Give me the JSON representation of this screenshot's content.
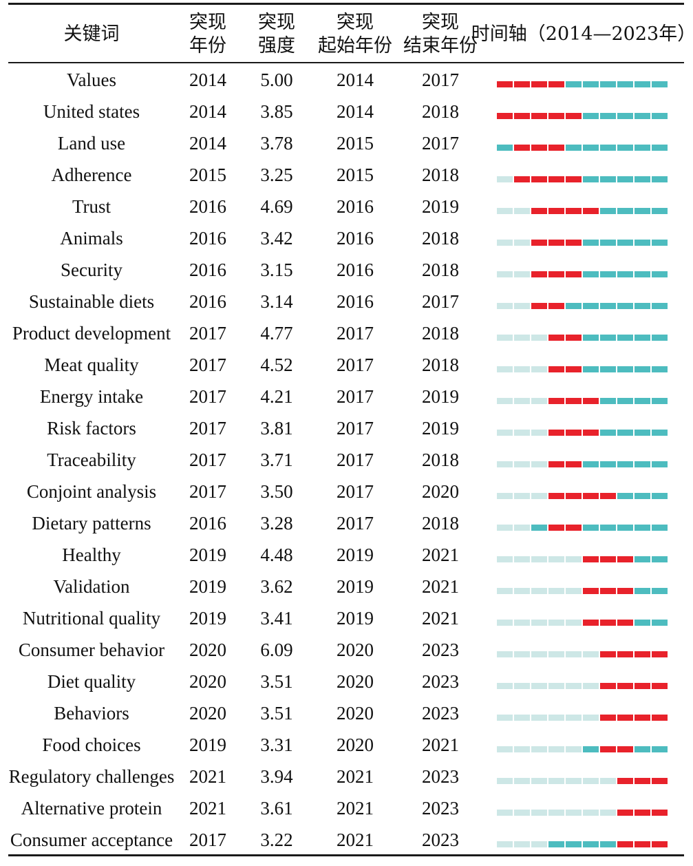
{
  "headers": {
    "keyword": "关键词",
    "year_l1": "突现",
    "year_l2": "年份",
    "strength_l1": "突现",
    "strength_l2": "强度",
    "start_l1": "突现",
    "start_l2": "起始年份",
    "end_l1": "突现",
    "end_l2": "结束年份",
    "timeline": "时间轴（2014—2023年）"
  },
  "colors": {
    "burst": "#e8222b",
    "active": "#4dbcbf",
    "inactive": "#cde7e6",
    "rule": "#1a1a1a"
  },
  "chart_data": {
    "type": "table",
    "timeline_range": [
      2014,
      2023
    ],
    "columns": [
      "关键词",
      "突现年份",
      "突现强度",
      "突现起始年份",
      "突现结束年份",
      "时间轴（2014—2023年）"
    ],
    "rows": [
      {
        "keyword": "Values",
        "year": "2014",
        "strength": "5.00",
        "start": "2014",
        "end": "2017"
      },
      {
        "keyword": "United states",
        "year": "2014",
        "strength": "3.85",
        "start": "2014",
        "end": "2018"
      },
      {
        "keyword": "Land use",
        "year": "2014",
        "strength": "3.78",
        "start": "2015",
        "end": "2017"
      },
      {
        "keyword": "Adherence",
        "year": "2015",
        "strength": "3.25",
        "start": "2015",
        "end": "2018"
      },
      {
        "keyword": "Trust",
        "year": "2016",
        "strength": "4.69",
        "start": "2016",
        "end": "2019"
      },
      {
        "keyword": "Animals",
        "year": "2016",
        "strength": "3.42",
        "start": "2016",
        "end": "2018"
      },
      {
        "keyword": "Security",
        "year": "2016",
        "strength": "3.15",
        "start": "2016",
        "end": "2018"
      },
      {
        "keyword": "Sustainable diets",
        "year": "2016",
        "strength": "3.14",
        "start": "2016",
        "end": "2017"
      },
      {
        "keyword": "Product development",
        "year": "2017",
        "strength": "4.77",
        "start": "2017",
        "end": "2018"
      },
      {
        "keyword": "Meat quality",
        "year": "2017",
        "strength": "4.52",
        "start": "2017",
        "end": "2018"
      },
      {
        "keyword": "Energy intake",
        "year": "2017",
        "strength": "4.21",
        "start": "2017",
        "end": "2019"
      },
      {
        "keyword": "Risk factors",
        "year": "2017",
        "strength": "3.81",
        "start": "2017",
        "end": "2019"
      },
      {
        "keyword": "Traceability",
        "year": "2017",
        "strength": "3.71",
        "start": "2017",
        "end": "2018"
      },
      {
        "keyword": "Conjoint analysis",
        "year": "2017",
        "strength": "3.50",
        "start": "2017",
        "end": "2020"
      },
      {
        "keyword": "Dietary patterns",
        "year": "2016",
        "strength": "3.28",
        "start": "2017",
        "end": "2018"
      },
      {
        "keyword": "Healthy",
        "year": "2019",
        "strength": "4.48",
        "start": "2019",
        "end": "2021"
      },
      {
        "keyword": "Validation",
        "year": "2019",
        "strength": "3.62",
        "start": "2019",
        "end": "2021"
      },
      {
        "keyword": "Nutritional quality",
        "year": "2019",
        "strength": "3.41",
        "start": "2019",
        "end": "2021"
      },
      {
        "keyword": "Consumer behavior",
        "year": "2020",
        "strength": "6.09",
        "start": "2020",
        "end": "2023"
      },
      {
        "keyword": "Diet quality",
        "year": "2020",
        "strength": "3.51",
        "start": "2020",
        "end": "2023"
      },
      {
        "keyword": "Behaviors",
        "year": "2020",
        "strength": "3.51",
        "start": "2020",
        "end": "2023"
      },
      {
        "keyword": "Food choices",
        "year": "2019",
        "strength": "3.31",
        "start": "2020",
        "end": "2021"
      },
      {
        "keyword": "Regulatory challenges",
        "year": "2021",
        "strength": "3.94",
        "start": "2021",
        "end": "2023"
      },
      {
        "keyword": "Alternative protein",
        "year": "2021",
        "strength": "3.61",
        "start": "2021",
        "end": "2023"
      },
      {
        "keyword": "Consumer acceptance",
        "year": "2017",
        "strength": "3.22",
        "start": "2021",
        "end": "2023"
      }
    ]
  }
}
